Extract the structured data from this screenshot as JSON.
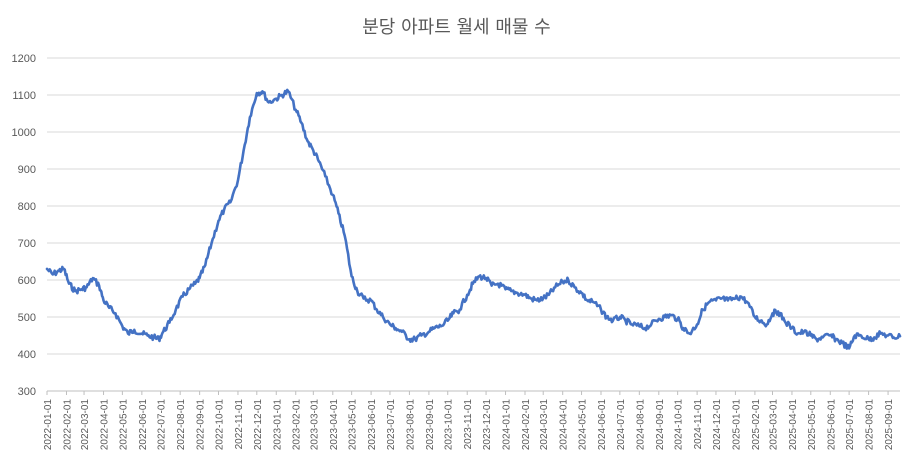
{
  "chart_data": {
    "type": "line",
    "title": "분당 아파트 월세 매물 수",
    "xlabel": "",
    "ylabel": "",
    "ylim": [
      300,
      1200
    ],
    "yticks": [
      300,
      400,
      500,
      600,
      700,
      800,
      900,
      1000,
      1100,
      1200
    ],
    "grid": true,
    "legend": "none",
    "line_color": "#4472C4",
    "x_start": "2022-01-01",
    "x_end": "2025-09-20",
    "x_tick_labels": [
      "2022-01-01",
      "2022-02-01",
      "2022-03-01",
      "2022-04-01",
      "2022-05-01",
      "2022-06-01",
      "2022-07-01",
      "2022-08-01",
      "2022-09-01",
      "2022-10-01",
      "2022-11-01",
      "2022-12-01",
      "2023-01-01",
      "2023-02-01",
      "2023-03-01",
      "2023-04-01",
      "2023-05-01",
      "2023-06-01",
      "2023-07-01",
      "2023-08-01",
      "2023-09-01",
      "2023-10-01",
      "2023-11-01",
      "2023-12-01",
      "2024-01-01",
      "2024-02-01",
      "2024-03-01",
      "2024-04-01",
      "2024-05-01",
      "2024-06-01",
      "2024-07-01",
      "2024-08-01",
      "2024-09-01",
      "2024-10-01",
      "2024-11-01",
      "2024-12-01",
      "2025-01-01",
      "2025-02-01",
      "2025-03-01",
      "2025-04-01",
      "2025-05-01",
      "2025-06-01",
      "2025-07-01",
      "2025-08-01",
      "2025-09-01"
    ],
    "series": [
      {
        "values": [
          [
            "2022-01-01",
            630
          ],
          [
            "2022-01-10",
            615
          ],
          [
            "2022-01-20",
            625
          ],
          [
            "2022-01-28",
            630
          ],
          [
            "2022-02-05",
            590
          ],
          [
            "2022-02-15",
            570
          ],
          [
            "2022-02-25",
            575
          ],
          [
            "2022-03-05",
            580
          ],
          [
            "2022-03-15",
            605
          ],
          [
            "2022-03-25",
            585
          ],
          [
            "2022-04-01",
            545
          ],
          [
            "2022-04-10",
            525
          ],
          [
            "2022-04-20",
            510
          ],
          [
            "2022-05-01",
            475
          ],
          [
            "2022-05-10",
            455
          ],
          [
            "2022-05-20",
            465
          ],
          [
            "2022-06-01",
            455
          ],
          [
            "2022-06-10",
            450
          ],
          [
            "2022-06-20",
            445
          ],
          [
            "2022-06-28",
            440
          ],
          [
            "2022-07-05",
            460
          ],
          [
            "2022-07-15",
            485
          ],
          [
            "2022-07-25",
            520
          ],
          [
            "2022-08-05",
            555
          ],
          [
            "2022-08-15",
            575
          ],
          [
            "2022-08-25",
            590
          ],
          [
            "2022-09-01",
            605
          ],
          [
            "2022-09-10",
            640
          ],
          [
            "2022-09-20",
            700
          ],
          [
            "2022-10-01",
            760
          ],
          [
            "2022-10-10",
            790
          ],
          [
            "2022-10-20",
            810
          ],
          [
            "2022-11-01",
            870
          ],
          [
            "2022-11-10",
            950
          ],
          [
            "2022-11-20",
            1040
          ],
          [
            "2022-12-01",
            1105
          ],
          [
            "2022-12-10",
            1110
          ],
          [
            "2022-12-20",
            1080
          ],
          [
            "2023-01-01",
            1090
          ],
          [
            "2023-01-10",
            1100
          ],
          [
            "2023-01-20",
            1110
          ],
          [
            "2023-02-01",
            1060
          ],
          [
            "2023-02-10",
            1025
          ],
          [
            "2023-02-20",
            975
          ],
          [
            "2023-03-01",
            950
          ],
          [
            "2023-03-10",
            920
          ],
          [
            "2023-03-20",
            880
          ],
          [
            "2023-04-01",
            830
          ],
          [
            "2023-04-10",
            780
          ],
          [
            "2023-04-20",
            720
          ],
          [
            "2023-05-01",
            610
          ],
          [
            "2023-05-10",
            570
          ],
          [
            "2023-05-20",
            550
          ],
          [
            "2023-06-01",
            545
          ],
          [
            "2023-06-10",
            520
          ],
          [
            "2023-06-20",
            500
          ],
          [
            "2023-07-01",
            480
          ],
          [
            "2023-07-10",
            470
          ],
          [
            "2023-07-20",
            460
          ],
          [
            "2023-08-01",
            440
          ],
          [
            "2023-08-10",
            440
          ],
          [
            "2023-08-20",
            450
          ],
          [
            "2023-09-01",
            460
          ],
          [
            "2023-09-10",
            470
          ],
          [
            "2023-09-20",
            475
          ],
          [
            "2023-10-01",
            490
          ],
          [
            "2023-10-10",
            510
          ],
          [
            "2023-10-20",
            520
          ],
          [
            "2023-11-01",
            560
          ],
          [
            "2023-11-10",
            590
          ],
          [
            "2023-11-20",
            610
          ],
          [
            "2023-12-01",
            605
          ],
          [
            "2023-12-10",
            585
          ],
          [
            "2023-12-20",
            590
          ],
          [
            "2024-01-01",
            575
          ],
          [
            "2024-01-10",
            570
          ],
          [
            "2024-01-20",
            565
          ],
          [
            "2024-02-01",
            560
          ],
          [
            "2024-02-10",
            550
          ],
          [
            "2024-02-20",
            545
          ],
          [
            "2024-03-01",
            550
          ],
          [
            "2024-03-10",
            560
          ],
          [
            "2024-03-20",
            580
          ],
          [
            "2024-04-01",
            595
          ],
          [
            "2024-04-10",
            600
          ],
          [
            "2024-04-20",
            580
          ],
          [
            "2024-05-01",
            565
          ],
          [
            "2024-05-10",
            545
          ],
          [
            "2024-05-20",
            540
          ],
          [
            "2024-06-01",
            520
          ],
          [
            "2024-06-10",
            500
          ],
          [
            "2024-06-20",
            490
          ],
          [
            "2024-07-01",
            500
          ],
          [
            "2024-07-10",
            490
          ],
          [
            "2024-07-20",
            480
          ],
          [
            "2024-08-01",
            475
          ],
          [
            "2024-08-10",
            470
          ],
          [
            "2024-08-20",
            480
          ],
          [
            "2024-09-01",
            495
          ],
          [
            "2024-09-10",
            500
          ],
          [
            "2024-09-20",
            505
          ],
          [
            "2024-10-01",
            495
          ],
          [
            "2024-10-10",
            470
          ],
          [
            "2024-10-20",
            455
          ],
          [
            "2024-11-01",
            480
          ],
          [
            "2024-11-10",
            520
          ],
          [
            "2024-11-20",
            540
          ],
          [
            "2024-12-01",
            545
          ],
          [
            "2024-12-10",
            550
          ],
          [
            "2024-12-20",
            545
          ],
          [
            "2025-01-01",
            550
          ],
          [
            "2025-01-10",
            555
          ],
          [
            "2025-01-20",
            540
          ],
          [
            "2025-02-01",
            500
          ],
          [
            "2025-02-10",
            490
          ],
          [
            "2025-02-20",
            480
          ],
          [
            "2025-03-01",
            510
          ],
          [
            "2025-03-10",
            515
          ],
          [
            "2025-03-20",
            490
          ],
          [
            "2025-04-01",
            470
          ],
          [
            "2025-04-10",
            455
          ],
          [
            "2025-04-20",
            460
          ],
          [
            "2025-05-01",
            450
          ],
          [
            "2025-05-10",
            440
          ],
          [
            "2025-05-20",
            445
          ],
          [
            "2025-06-01",
            450
          ],
          [
            "2025-06-10",
            440
          ],
          [
            "2025-06-20",
            430
          ],
          [
            "2025-07-01",
            415
          ],
          [
            "2025-07-10",
            450
          ],
          [
            "2025-07-20",
            450
          ],
          [
            "2025-08-01",
            440
          ],
          [
            "2025-08-10",
            445
          ],
          [
            "2025-08-20",
            455
          ],
          [
            "2025-09-01",
            450
          ],
          [
            "2025-09-10",
            445
          ],
          [
            "2025-09-20",
            448
          ]
        ]
      }
    ]
  }
}
